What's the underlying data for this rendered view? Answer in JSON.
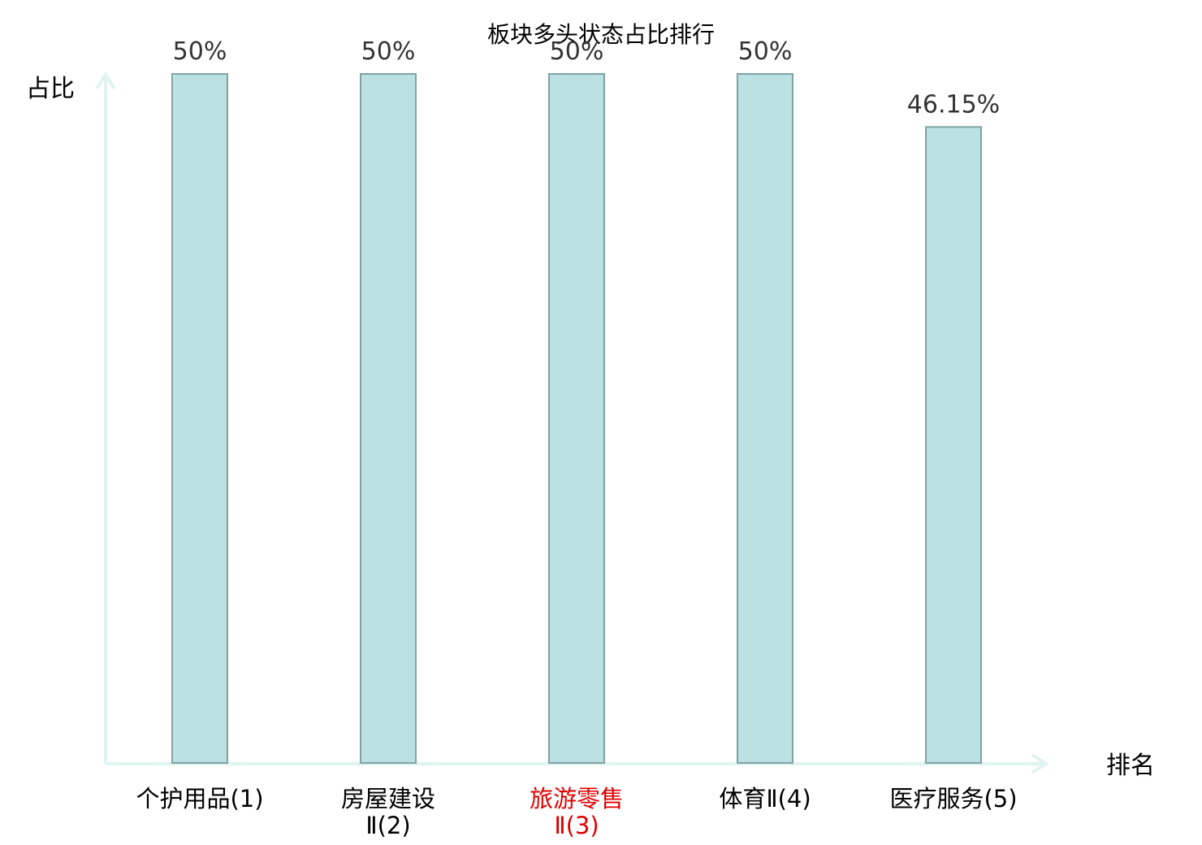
{
  "chart_data": {
    "type": "bar",
    "title": "板块多头状态占比排行",
    "xlabel": "排名",
    "ylabel": "占比",
    "categories": [
      [
        "个护用品(1)"
      ],
      [
        "房屋建设",
        "Ⅱ(2)"
      ],
      [
        "旅游零售",
        "Ⅱ(3)"
      ],
      [
        "体育Ⅱ(4)"
      ],
      [
        "医疗服务(5)"
      ]
    ],
    "values": [
      50,
      50,
      50,
      50,
      46.15
    ],
    "value_labels": [
      "50%",
      "50%",
      "50%",
      "50%",
      "46.15%"
    ],
    "highlight_index": 2,
    "ylim": [
      0,
      50
    ],
    "grid": false,
    "colors": {
      "bar_fill": "#bce1e3",
      "bar_stroke": "#7fa3a5",
      "axis": "#dff3f0",
      "highlight_label": "#e00000",
      "label": "#000000"
    }
  }
}
